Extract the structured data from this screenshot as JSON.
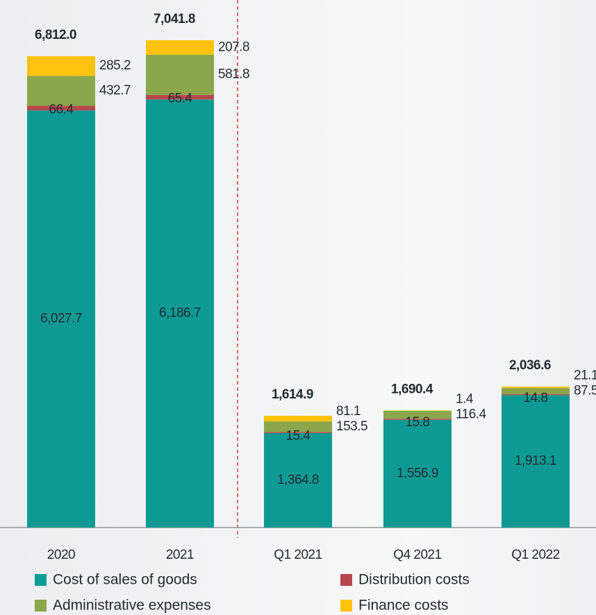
{
  "chart_data": {
    "type": "stacked_bar",
    "categories": [
      "2020",
      "2021",
      "Q1 2021",
      "Q4 2021",
      "Q1 2022"
    ],
    "series": [
      {
        "name": "Cost of sales of goods",
        "color": "#0e9a94",
        "values": [
          6027.7,
          6186.7,
          1364.8,
          1556.9,
          1913.1
        ],
        "value_labels": [
          "6,027.7",
          "6,186.7",
          "1,364.8",
          "1,556.9",
          "1,913.1"
        ]
      },
      {
        "name": "Distribution costs",
        "color": "#b8474b",
        "values": [
          66.4,
          65.4,
          15.4,
          15.8,
          14.8
        ],
        "value_labels": [
          "66.4",
          "65.4",
          "15.4",
          "15.8",
          "14.8"
        ]
      },
      {
        "name": "Administrative expenses",
        "color": "#8ba64b",
        "values": [
          432.7,
          581.8,
          153.5,
          116.4,
          87.5
        ],
        "value_labels": [
          "432.7",
          "581.8",
          "153.5",
          "116.4",
          "87.5"
        ]
      },
      {
        "name": "Finance costs",
        "color": "#ffc20e",
        "values": [
          285.2,
          207.8,
          81.1,
          1.4,
          21.1
        ],
        "value_labels": [
          "285.2",
          "207.8",
          "81.1",
          "1.4",
          "21.1"
        ]
      }
    ],
    "totals": {
      "values": [
        6812.0,
        7041.8,
        1614.9,
        1690.4,
        2036.6
      ],
      "value_labels": [
        "6,812.0",
        "7,041.8",
        "1,614.9",
        "1,690.4",
        "2,036.6"
      ]
    }
  }
}
